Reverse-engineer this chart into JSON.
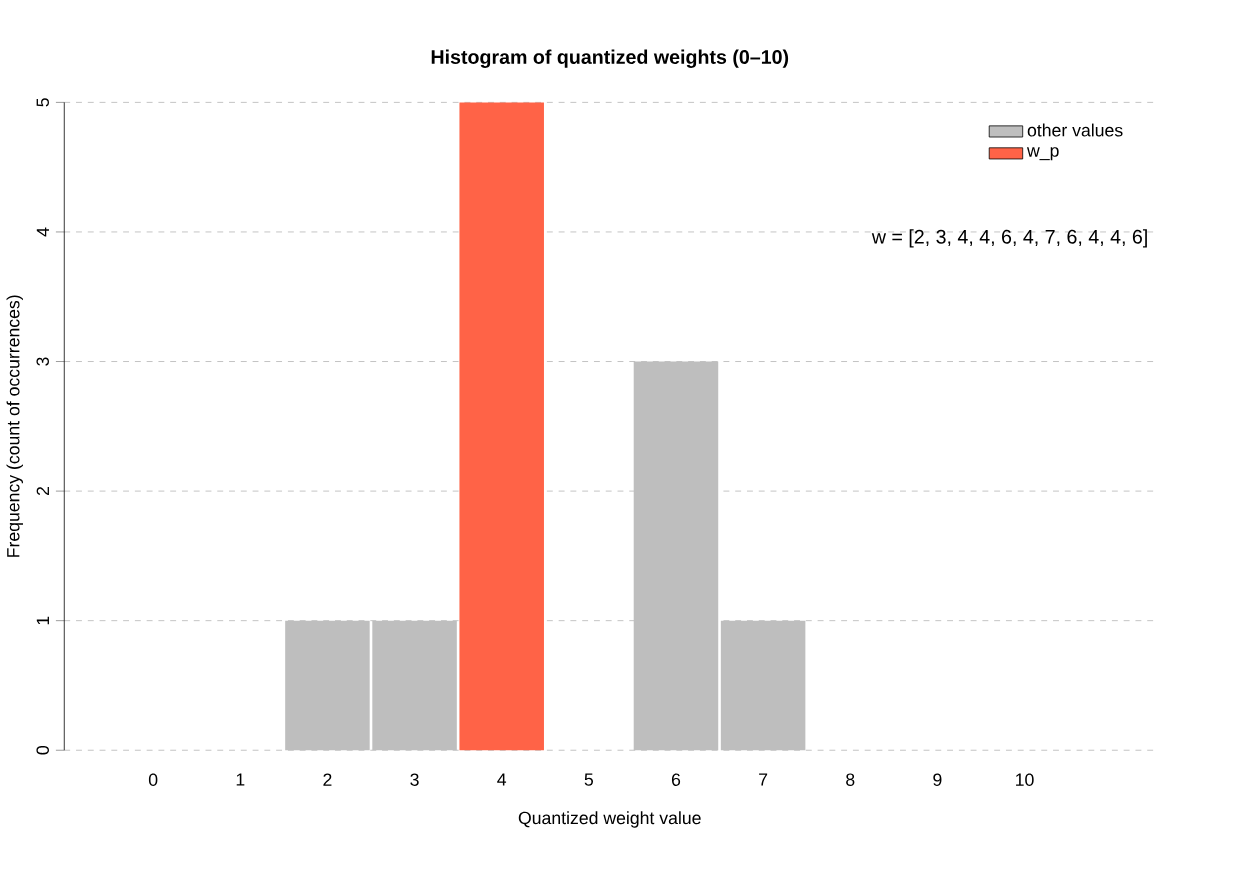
{
  "chart_data": {
    "type": "bar",
    "title": "Histogram of quantized weights (0–10)",
    "xlabel": "Quantized weight value",
    "ylabel": "Frequency (count of occurrences)",
    "categories": [
      "0",
      "1",
      "2",
      "3",
      "4",
      "5",
      "6",
      "7",
      "8",
      "9",
      "10"
    ],
    "series": [
      {
        "name": "other values",
        "color": "#bebebe",
        "values": [
          0,
          0,
          1,
          1,
          null,
          0,
          3,
          1,
          0,
          0,
          0
        ]
      },
      {
        "name": "w_p",
        "color": "#ff6347",
        "values": [
          null,
          null,
          null,
          null,
          5,
          null,
          null,
          null,
          null,
          null,
          null
        ]
      }
    ],
    "ylim": [
      0,
      5
    ],
    "yticks": [
      0,
      1,
      2,
      3,
      4,
      5
    ],
    "grid": "y",
    "legend": "top right",
    "annotations": [
      "w = [2, 3, 4, 4, 6, 4, 7, 6, 4, 4, 6]"
    ]
  }
}
